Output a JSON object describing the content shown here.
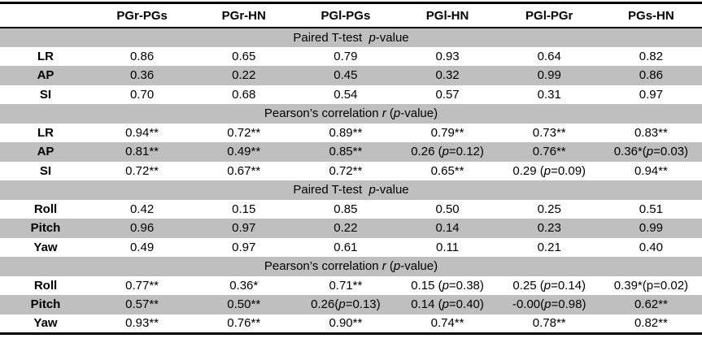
{
  "table": {
    "columns": [
      "",
      "PGr-PGs",
      "PGr-HN",
      "PGl-PGs",
      "PGl-HN",
      "PGl-PGr",
      "PGs-HN"
    ],
    "colors": {
      "band_gray": "#bfbfbf",
      "border_black": "#000000",
      "background": "#ffffff"
    },
    "sections": [
      {
        "title": "Paired T-test  p-value",
        "title_segments": [
          {
            "t": "Paired T-test  "
          },
          {
            "t": "p",
            "i": true
          },
          {
            "t": "-value"
          }
        ],
        "rows": [
          {
            "label": "LR",
            "values": [
              "0.86",
              "0.65",
              "0.79",
              "0.93",
              "0.64",
              "0.82"
            ]
          },
          {
            "label": "AP",
            "values": [
              "0.36",
              "0.22",
              "0.45",
              "0.32",
              "0.99",
              "0.86"
            ]
          },
          {
            "label": "SI",
            "values": [
              "0.70",
              "0.68",
              "0.54",
              "0.57",
              "0.31",
              "0.97"
            ]
          }
        ]
      },
      {
        "title": "Pearson's correlation r (p-value)",
        "title_segments": [
          {
            "t": "Pearson’s correlation "
          },
          {
            "t": "r",
            "i": true
          },
          {
            "t": " ("
          },
          {
            "t": "p",
            "i": true
          },
          {
            "t": "-value)"
          }
        ],
        "rows": [
          {
            "label": "LR",
            "values": [
              "0.94**",
              "0.72**",
              "0.89**",
              "0.79**",
              "0.73**",
              "0.83**"
            ]
          },
          {
            "label": "AP",
            "values": [
              "0.81**",
              "0.49**",
              "0.85**",
              {
                "segs": [
                  {
                    "t": "0.26 ("
                  },
                  {
                    "t": "p",
                    "i": true
                  },
                  {
                    "t": "=0.12)"
                  }
                ]
              },
              "0.76**",
              {
                "segs": [
                  {
                    "t": "0.36*("
                  },
                  {
                    "t": "p",
                    "i": true
                  },
                  {
                    "t": "=0.03)"
                  }
                ]
              }
            ]
          },
          {
            "label": "SI",
            "values": [
              "0.72**",
              "0.67**",
              "0.72**",
              "0.65**",
              {
                "segs": [
                  {
                    "t": "0.29 ("
                  },
                  {
                    "t": "p",
                    "i": true
                  },
                  {
                    "t": "=0.09)"
                  }
                ]
              },
              "0.94**"
            ]
          }
        ]
      },
      {
        "title": "Paired T-test  p-value",
        "title_segments": [
          {
            "t": "Paired T-test  "
          },
          {
            "t": "p",
            "i": true
          },
          {
            "t": "-value"
          }
        ],
        "rows": [
          {
            "label": "Roll",
            "values": [
              "0.42",
              "0.15",
              "0.85",
              "0.50",
              "0.25",
              "0.51"
            ]
          },
          {
            "label": "Pitch",
            "values": [
              "0.96",
              "0.97",
              "0.22",
              "0.14",
              "0.23",
              "0.99"
            ]
          },
          {
            "label": "Yaw",
            "values": [
              "0.49",
              "0.97",
              "0.61",
              "0.11",
              "0.21",
              "0.40"
            ]
          }
        ]
      },
      {
        "title": "Pearson's correlation r (p-value)",
        "title_segments": [
          {
            "t": "Pearson’s correlation "
          },
          {
            "t": "r",
            "i": true
          },
          {
            "t": " ("
          },
          {
            "t": "p",
            "i": true
          },
          {
            "t": "-value)"
          }
        ],
        "rows": [
          {
            "label": "Roll",
            "values": [
              "0.77**",
              "0.36*",
              "0.71**",
              {
                "segs": [
                  {
                    "t": "0.15 ("
                  },
                  {
                    "t": "p",
                    "i": true
                  },
                  {
                    "t": "=0.38)"
                  }
                ]
              },
              {
                "segs": [
                  {
                    "t": "0.25 ("
                  },
                  {
                    "t": "p",
                    "i": true
                  },
                  {
                    "t": "=0.14)"
                  }
                ]
              },
              "0.39*(p=0.02)"
            ]
          },
          {
            "label": "Pitch",
            "values": [
              "0.57**",
              "0.50**",
              {
                "segs": [
                  {
                    "t": "0.26("
                  },
                  {
                    "t": "p",
                    "i": true
                  },
                  {
                    "t": "=0.13)"
                  }
                ]
              },
              {
                "segs": [
                  {
                    "t": "0.14 ("
                  },
                  {
                    "t": "p",
                    "i": true
                  },
                  {
                    "t": "=0.40)"
                  }
                ]
              },
              {
                "segs": [
                  {
                    "t": "-0.00("
                  },
                  {
                    "t": "p",
                    "i": true
                  },
                  {
                    "t": "=0.98)"
                  }
                ]
              },
              "0.62**"
            ]
          },
          {
            "label": "Yaw",
            "values": [
              "0.93**",
              "0.76**",
              "0.90**",
              "0.74**",
              "0.78**",
              "0.82**"
            ]
          }
        ]
      }
    ]
  }
}
